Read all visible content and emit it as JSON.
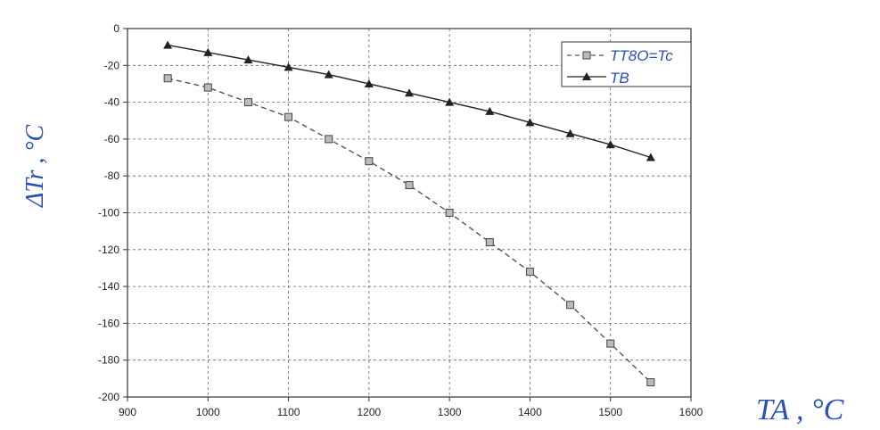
{
  "chart_data": {
    "type": "line",
    "title": "",
    "xlabel": "TA , °C",
    "ylabel": "ΔTr , °C",
    "xlim": [
      900,
      1600
    ],
    "ylim": [
      -200,
      0
    ],
    "x_ticks": [
      "900",
      "1000",
      "1100",
      "1200",
      "1300",
      "1400",
      "1500",
      "1600"
    ],
    "y_ticks": [
      "0",
      "-20",
      "-40",
      "-60",
      "-80",
      "-100",
      "-120",
      "-140",
      "-160",
      "-180",
      "-200"
    ],
    "grid": true,
    "legend_position": "top-right",
    "series": [
      {
        "name": "TT8O=Tc",
        "marker": "square",
        "line_style": "dashed",
        "x": [
          950,
          1000,
          1050,
          1100,
          1150,
          1200,
          1250,
          1300,
          1350,
          1400,
          1450,
          1500,
          1550
        ],
        "y": [
          -27,
          -32,
          -40,
          -48,
          -60,
          -72,
          -85,
          -100,
          -116,
          -132,
          -150,
          -171,
          -192
        ]
      },
      {
        "name": "TB",
        "marker": "triangle",
        "line_style": "solid",
        "x": [
          950,
          1000,
          1050,
          1100,
          1150,
          1200,
          1250,
          1300,
          1350,
          1400,
          1450,
          1500,
          1550
        ],
        "y": [
          -9,
          -13,
          -17,
          -21,
          -25,
          -30,
          -35,
          -40,
          -45,
          -51,
          -57,
          -63,
          -70
        ]
      }
    ]
  }
}
